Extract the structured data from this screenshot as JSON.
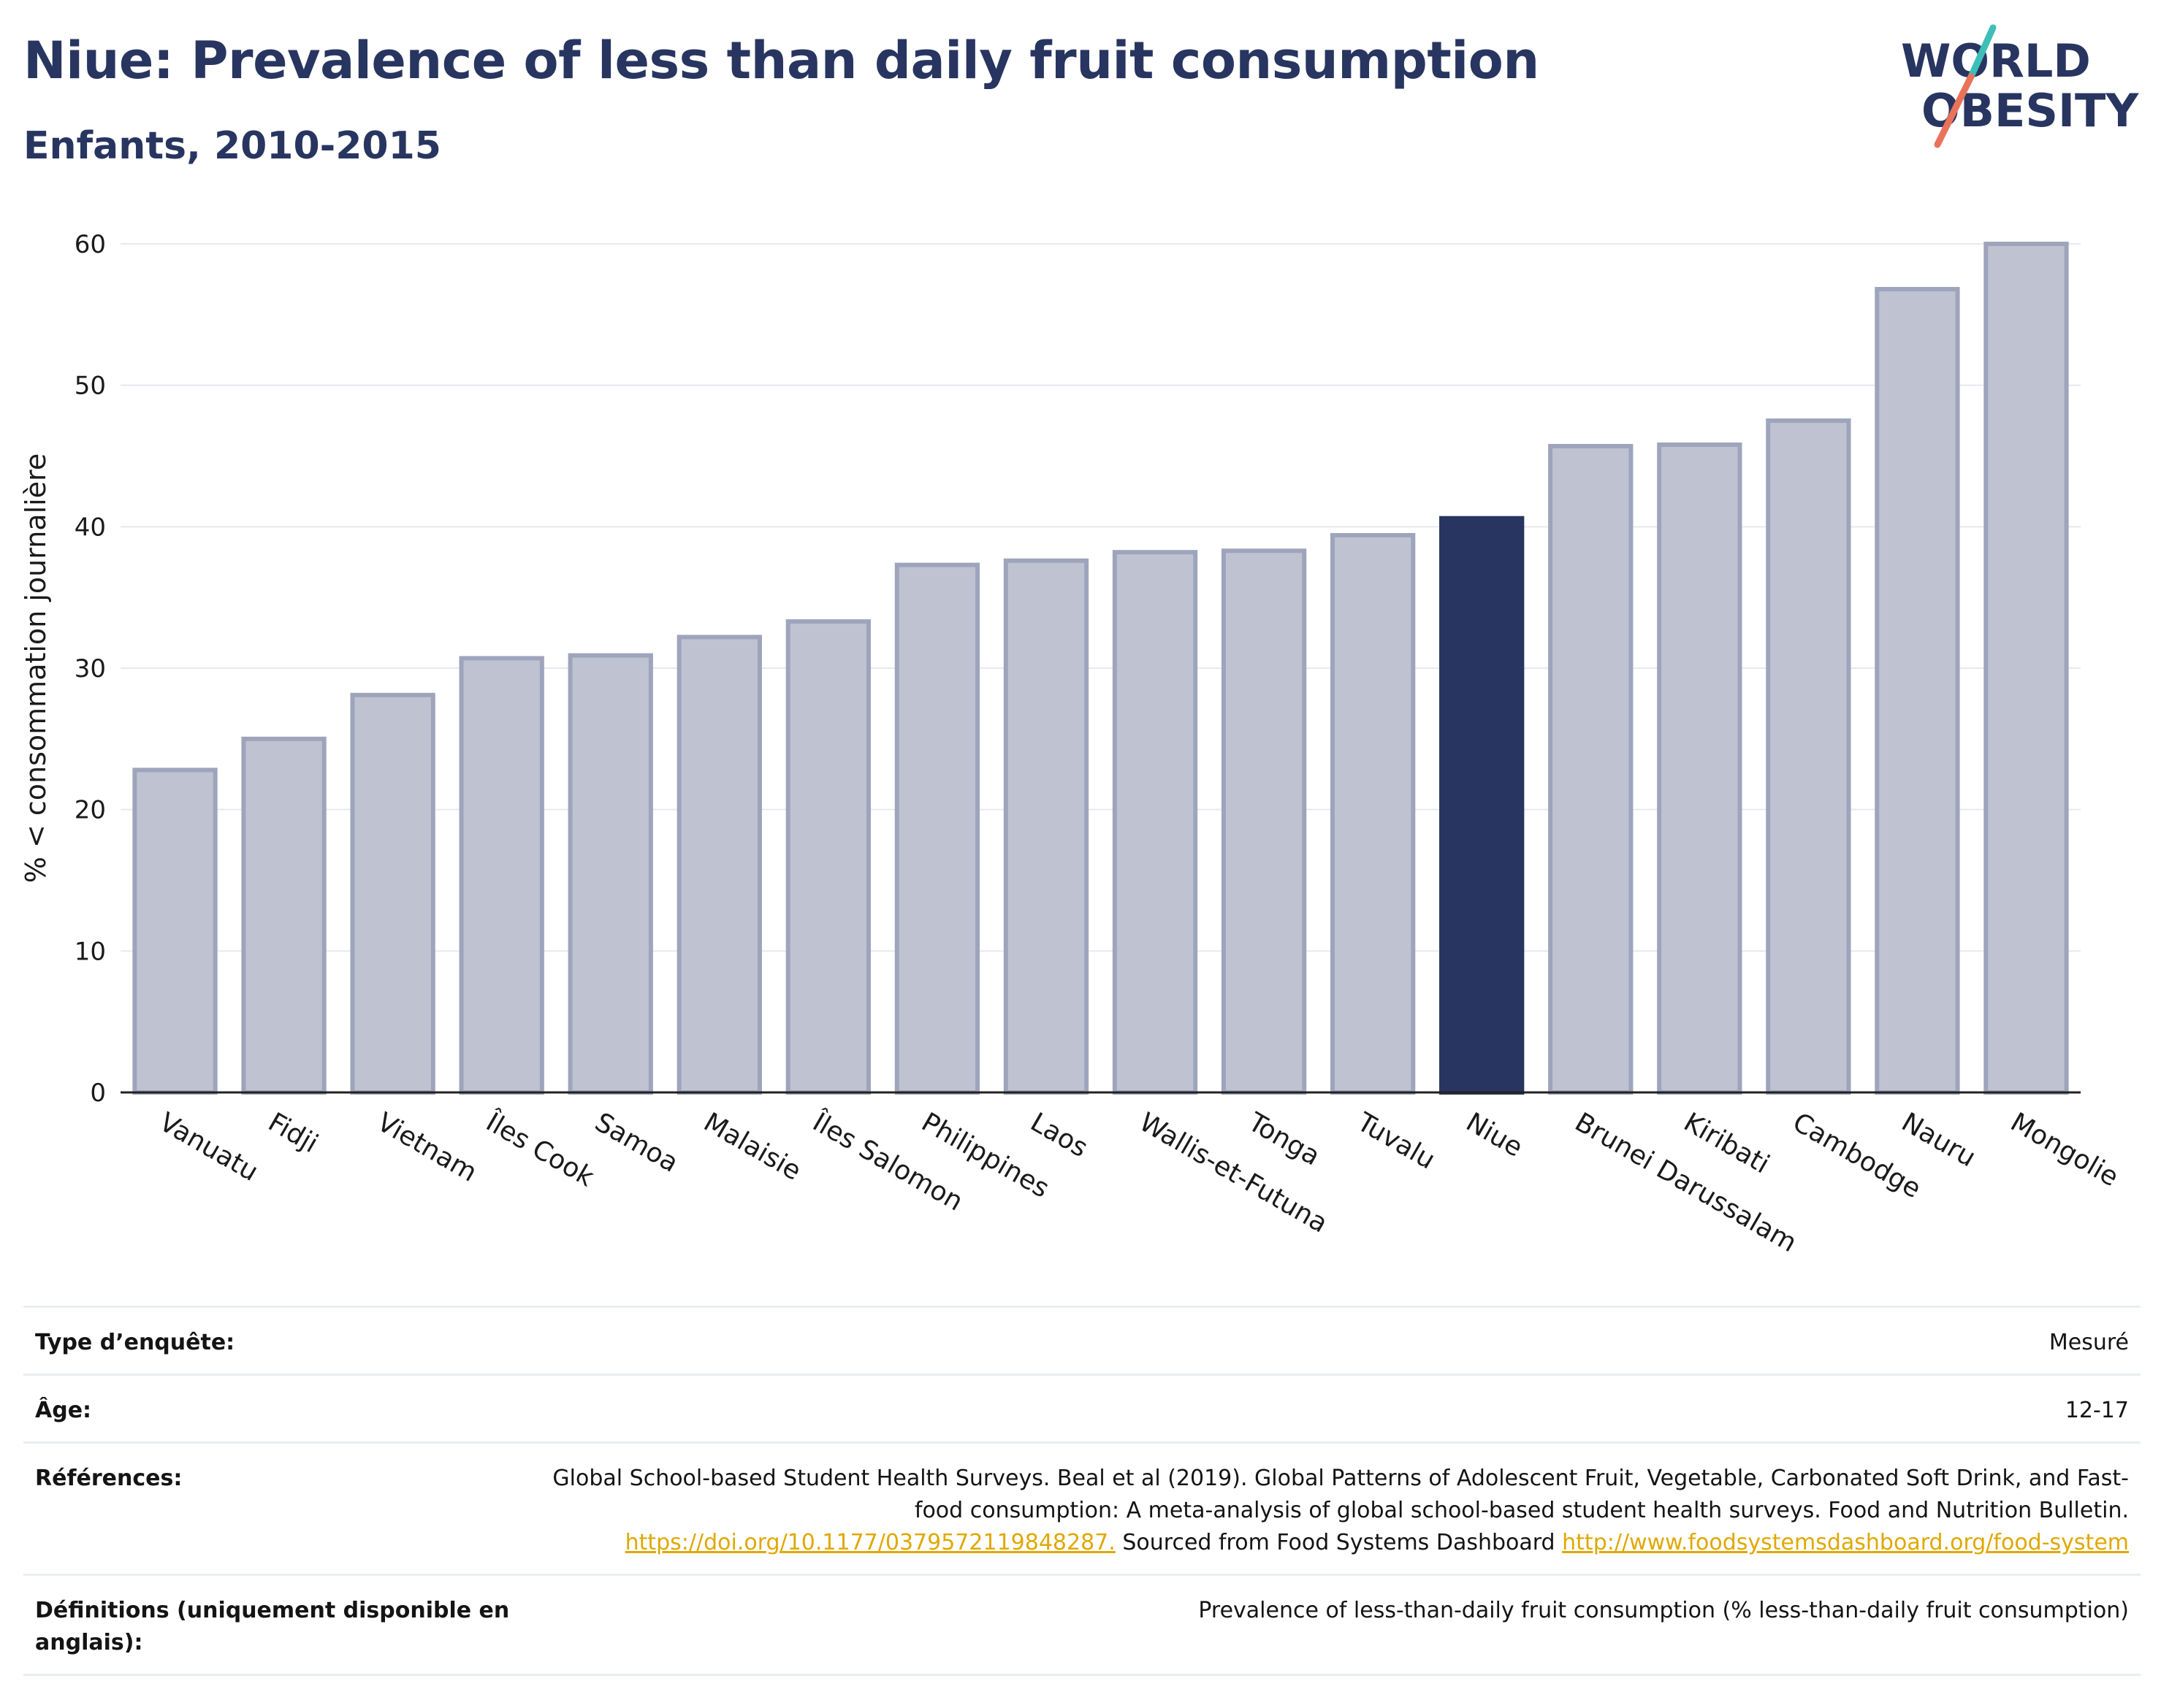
{
  "header": {
    "title": "Niue: Prevalence of less than daily fruit consumption",
    "subtitle": "Enfants, 2010-2015"
  },
  "logo": {
    "line1": "WORLD",
    "line2": "OBESITY",
    "icon": "world-obesity-logo"
  },
  "colors": {
    "highlight": "#283560",
    "bar": "#bfc3d1",
    "bar_border": "#9ea4bb",
    "title": "#283560",
    "link": "#e0a800"
  },
  "chart_data": {
    "type": "bar",
    "title": "Niue: Prevalence of less than daily fruit consumption",
    "subtitle": "Enfants, 2010-2015",
    "xlabel": "",
    "ylabel": "% < consommation journalière",
    "ylim": [
      0,
      60
    ],
    "yticks": [
      0,
      10,
      20,
      30,
      40,
      50,
      60
    ],
    "grid": true,
    "highlight": "Niue",
    "categories": [
      "Vanuatu",
      "Fidji",
      "Vietnam",
      "Îles Cook",
      "Samoa",
      "Malaisie",
      "Îles Salomon",
      "Philippines",
      "Laos",
      "Wallis-et-Futuna",
      "Tonga",
      "Tuvalu",
      "Niue",
      "Brunei Darussalam",
      "Kiribati",
      "Cambodge",
      "Nauru",
      "Mongolie"
    ],
    "values": [
      22.8,
      25.0,
      28.1,
      30.7,
      30.9,
      32.2,
      33.3,
      37.3,
      37.6,
      38.2,
      38.3,
      39.4,
      40.6,
      45.7,
      45.8,
      47.5,
      56.8,
      60.0
    ]
  },
  "info": {
    "survey_type": {
      "label": "Type d’enquête:",
      "value": "Mesuré"
    },
    "age": {
      "label": "Âge:",
      "value": "12-17"
    },
    "references": {
      "label": "Références:",
      "text1": "Global School-based Student Health Surveys. Beal et al (2019). Global Patterns of Adolescent Fruit, Vegetable, Carbonated Soft Drink, and Fast-food consumption: A meta-analysis of global school-based student health surveys. Food and Nutrition Bulletin.",
      "link1": "https://doi.org/10.1177/0379572119848287.",
      "text2": "Sourced from Food Systems Dashboard",
      "link2": "http://www.foodsystemsdashboard.org/food-system"
    },
    "definitions": {
      "label": "Définitions (uniquement disponible en anglais):",
      "value": "Prevalence of less-than-daily fruit consumption (% less-than-daily fruit consumption)"
    }
  }
}
